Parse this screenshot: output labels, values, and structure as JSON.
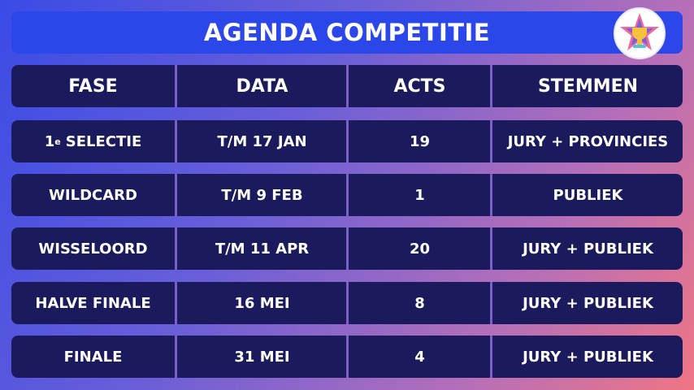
{
  "header": {
    "title": "AGENDA COMPETITIE"
  },
  "table": {
    "columns": [
      "FASE",
      "DATA",
      "ACTS",
      "STEMMEN"
    ],
    "rows": [
      [
        {
          "main": "1",
          "sup": "e",
          "text": "SELECTIE"
        },
        "T/M 17 JAN",
        19,
        "JURY + PROVINCIES"
      ],
      [
        "WILDCARD",
        "T/M 9 FEB",
        1,
        "PUBLIEK"
      ],
      [
        "WISSELOORD",
        "T/M 11 APR",
        20,
        "JURY + PUBLIEK"
      ],
      [
        "HALVE FINALE",
        "16 MEI",
        8,
        "JURY + PUBLIEK"
      ],
      [
        "FINALE",
        "31 MEI",
        4,
        "JURY + PUBLIEK"
      ]
    ]
  }
}
